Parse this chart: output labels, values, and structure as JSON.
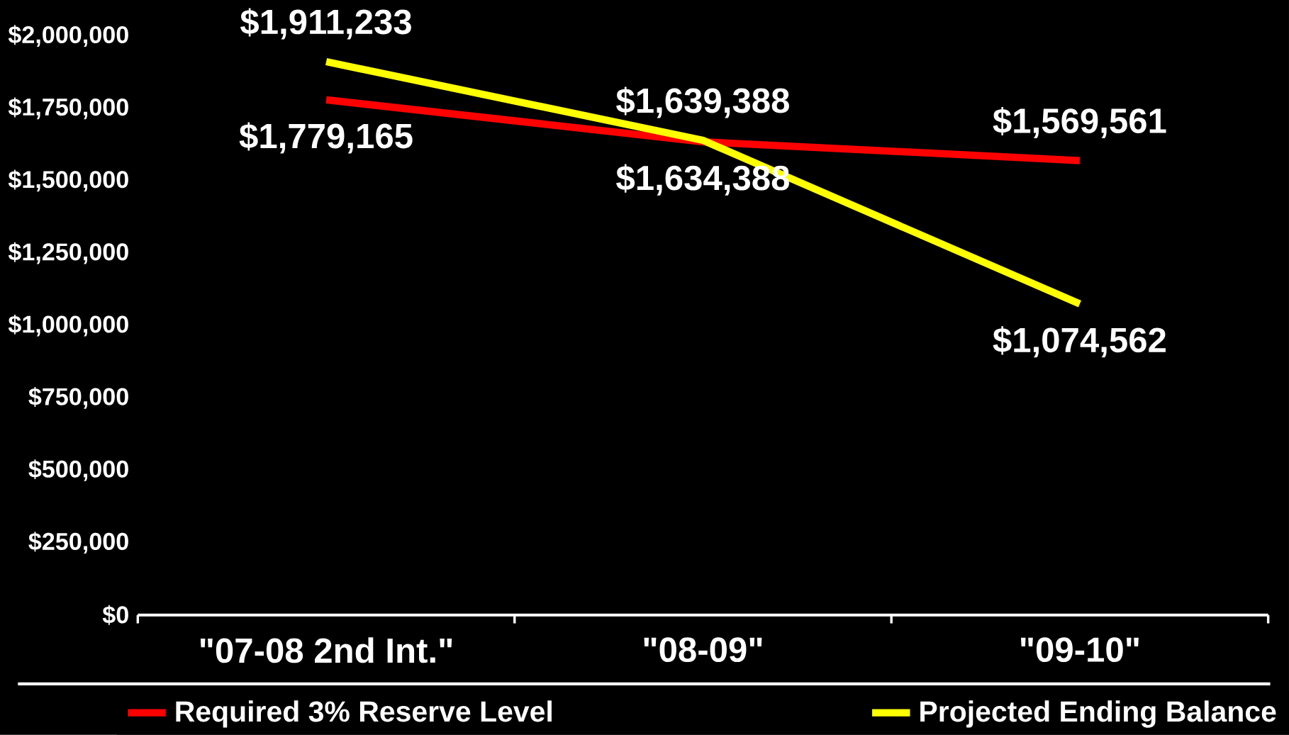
{
  "chart_data": {
    "type": "line",
    "categories": [
      "\"07-08 2nd Int.\"",
      "\"08-09\"",
      "\"09-10\""
    ],
    "series": [
      {
        "name": "Required 3% Reserve Level",
        "color": "#ff0000",
        "values": [
          1779165,
          1634388,
          1569561
        ],
        "value_labels": [
          "$1,779,165",
          "$1,634,388",
          "$1,569,561"
        ]
      },
      {
        "name": "Projected Ending Balance",
        "color": "#ffff00",
        "values": [
          1911233,
          1639388,
          1074562
        ],
        "value_labels": [
          "$1,911,233",
          "$1,639,388",
          "$1,074,562"
        ]
      }
    ],
    "ylim": [
      0,
      2000000
    ],
    "yticks": [
      {
        "value": 0,
        "label": "$0"
      },
      {
        "value": 250000,
        "label": "$250,000"
      },
      {
        "value": 500000,
        "label": "$500,000"
      },
      {
        "value": 750000,
        "label": "$750,000"
      },
      {
        "value": 1000000,
        "label": "$1,000,000"
      },
      {
        "value": 1250000,
        "label": "$1,250,000"
      },
      {
        "value": 1500000,
        "label": "$1,500,000"
      },
      {
        "value": 1750000,
        "label": "$1,750,000"
      },
      {
        "value": 2000000,
        "label": "$2,000,000"
      }
    ],
    "legend": "bottom",
    "grid": false,
    "marker": "none",
    "line_style": "solid"
  }
}
